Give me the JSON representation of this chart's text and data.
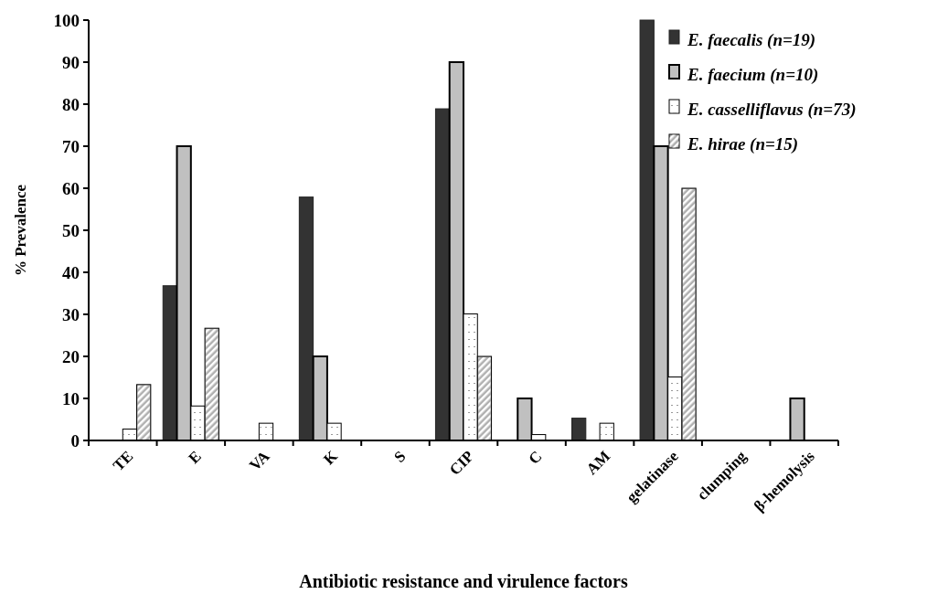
{
  "chart_data": {
    "type": "bar",
    "xlabel": "Antibiotic resistance and virulence factors",
    "ylabel": "% Prevalence",
    "categories": [
      "TE",
      "E",
      "VA",
      "K",
      "S",
      "CIP",
      "C",
      "AM",
      "gelatinase",
      "clumping",
      "β-hemolysis"
    ],
    "series": [
      {
        "name": "E. faecalis (n=19)",
        "color": "#333333",
        "values": [
          0,
          36.8,
          0,
          57.9,
          0,
          78.9,
          0,
          5.3,
          100,
          0,
          0
        ]
      },
      {
        "name": "E. faecium (n=10)",
        "color": "#c0c0c0",
        "values": [
          0,
          70,
          0,
          20,
          0,
          90,
          10,
          0,
          70,
          0,
          10
        ]
      },
      {
        "name": "E. casselliflavus (n=73)",
        "color": "#ffffff",
        "values": [
          2.7,
          8.2,
          4.1,
          4.1,
          0,
          30.1,
          1.4,
          4.1,
          15.1,
          0,
          0
        ]
      },
      {
        "name": "E. hirae (n=15)",
        "color": "#b0b0b0",
        "values": [
          13.3,
          26.7,
          0,
          0,
          0,
          20,
          0,
          0,
          60,
          0,
          0
        ]
      }
    ],
    "ylim": [
      0,
      100
    ],
    "yticks": [
      0,
      10,
      20,
      30,
      40,
      50,
      60,
      70,
      80,
      90,
      100
    ],
    "grid": false,
    "legend": "top right"
  }
}
